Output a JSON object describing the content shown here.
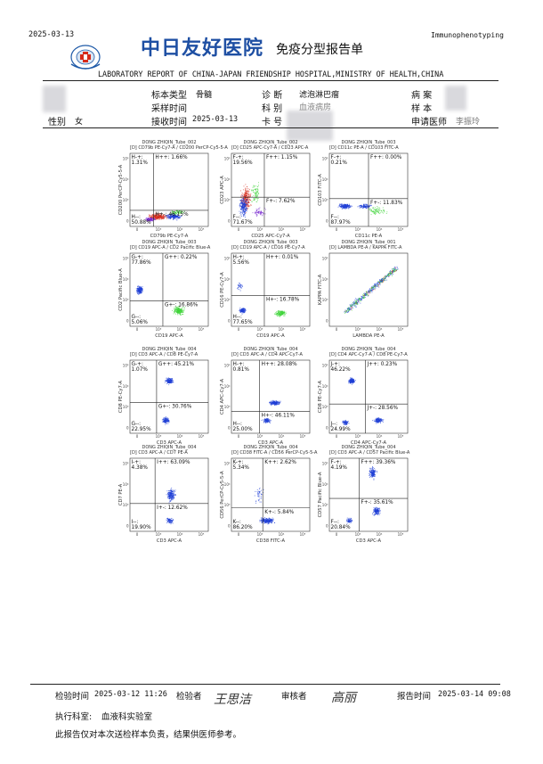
{
  "header": {
    "date": "2025-03-13",
    "right_tag": "Immunophenotyping",
    "hospital_cn": "中日友好医院",
    "report_title_cn": "免疫分型报告单",
    "report_title_en": "LABORATORY REPORT OF CHINA-JAPAN FRIENDSHIP HOSPITAL,MINISTRY OF HEALTH,CHINA"
  },
  "patient": {
    "specimen_type_label": "标本类型",
    "specimen_type": "骨髓",
    "diagnosis_label": "诊 断",
    "diagnosis": "滤泡淋巴瘤",
    "case_label": "病 案",
    "collect_time_label": "采样时间",
    "dept_label": "科 别",
    "dept": "血液病房",
    "sample_label": "样 本",
    "sex_label": "性别",
    "sex": "女",
    "receive_time_label": "接收时间",
    "receive_time": "2025-03-13",
    "card_label": "卡 号",
    "doctor_label": "申请医师",
    "doctor": "李振玲"
  },
  "plots": [
    {
      "title1": "DONG ZHIQIN_Tube_002",
      "title2": "[D] CD79b PE-Cy7-A / CD200 PerCP-Cy5-5-A",
      "xlabel": "CD79b PE-Cy7-A",
      "ylabel": "CD200 PerCP-Cy5-5-A",
      "q": {
        "ul": "H-+: 1.31%",
        "ur": "H++: 1.66%",
        "ll": "H--: 50.88%",
        "lr": "H+-: 46.15%"
      },
      "style": "cd79b"
    },
    {
      "title1": "DONG ZHIQIN_Tube_002",
      "title2": "[D] CD25 APC-Cy7-A / CD23 APC-A",
      "xlabel": "CD25 APC-Cy7-A",
      "ylabel": "CD23 APC-A",
      "q": {
        "ul": "F-+: 19.56%",
        "ur": "F++: 1.15%",
        "ll": "F--: 71.67%",
        "lr": "F+-: 7.62%"
      },
      "style": "cd25"
    },
    {
      "title1": "DONG ZHIQIN_Tube_003",
      "title2": "[D] CD11c PE-A / CD103 FITC-A",
      "xlabel": "CD11c PE-A",
      "ylabel": "CD103 FITC-A",
      "q": {
        "ul": "F-+: 0.21%",
        "ur": "F++: 0.00%",
        "ll": "F--: 87.97%",
        "lr": "F+-: 11.83%"
      },
      "style": "cd11c"
    },
    {
      "title1": "DONG ZHIQIN_Tube_003",
      "title2": "[D] CD19 APC-A / CD2 Pacific Blue-A",
      "xlabel": "CD19 APC-A",
      "ylabel": "CD2 Pacific Blue-A",
      "q": {
        "ul": "G-+: 77.86%",
        "ur": "G++: 0.22%",
        "ll": "G--: 5.06%",
        "lr": "G+-: 16.86%"
      },
      "style": "cd19a"
    },
    {
      "title1": "DONG ZHIQIN_Tube_003",
      "title2": "[D] CD19 APC-A / CD16 PE-Cy7-A",
      "xlabel": "CD19 APC-A",
      "ylabel": "CD16 PE-Cy7-A",
      "q": {
        "ul": "H-+: 5.56%",
        "ur": "H++: 0.01%",
        "ll": "H--: 77.65%",
        "lr": "H+-: 16.78%"
      },
      "style": "cd19b"
    },
    {
      "title1": "DONG ZHIQIN_Tube_001",
      "title2": "[D] LAMBDA PE-A / KAPPA FITC-A",
      "xlabel": "LAMBDA PE-A",
      "ylabel": "KAPPA FITC-A",
      "q": {
        "ul": "",
        "ur": "",
        "ll": "",
        "lr": ""
      },
      "style": "kappa"
    },
    {
      "title1": "DONG ZHIQIN_Tube_004",
      "title2": "[D] CD3 APC-A / CD8 PE-Cy7-A",
      "xlabel": "CD3 APC-A",
      "ylabel": "CD8 PE-Cy7-A",
      "q": {
        "ul": "G-+: 1.07%",
        "ur": "G++: 45.21%",
        "ll": "G--: 22.95%",
        "lr": "G+-: 30.76%"
      },
      "style": "cd3a"
    },
    {
      "title1": "DONG ZHIQIN_Tube_004",
      "title2": "[D] CD3 APC-A / CD4 APC-Cy7-A",
      "xlabel": "CD3 APC-A",
      "ylabel": "CD4 APC-Cy7-A",
      "q": {
        "ul": "H-+: 0.81%",
        "ur": "H++: 28.08%",
        "ll": "H--: 25.00%",
        "lr": "H+-: 46.11%"
      },
      "style": "cd3b"
    },
    {
      "title1": "DONG ZHIQIN_Tube_004",
      "title2": "[D] CD4 APC-Cy7-A / CD8 PE-Cy7-A",
      "xlabel": "CD4 APC-Cy7-A",
      "ylabel": "CD8 PE-Cy7-A",
      "q": {
        "ul": "J-+: 46.22%",
        "ur": "J++: 0.23%",
        "ll": "J--: 24.99%",
        "lr": "J+-: 28.56%"
      },
      "style": "cd4"
    },
    {
      "title1": "DONG ZHIQIN_Tube_004",
      "title2": "[D] CD3 APC-A / CD7 PE-A",
      "xlabel": "CD3 APC-A",
      "ylabel": "CD7 PE-A",
      "q": {
        "ul": "I-+: 4.38%",
        "ur": "I++: 63.09%",
        "ll": "I--: 19.90%",
        "lr": "I+-: 12.62%"
      },
      "style": "cd7"
    },
    {
      "title1": "DONG ZHIQIN_Tube_004",
      "title2": "[D] CD38 FITC-A / CD56 PerCP-Cy5-5-A",
      "xlabel": "CD38 FITC-A",
      "ylabel": "CD56 PerCP-Cy5-5-A",
      "q": {
        "ul": "K-+: 5.34%",
        "ur": "K++: 2.62%",
        "ll": "K--: 86.20%",
        "lr": "K+-: 5.84%"
      },
      "style": "cd38"
    },
    {
      "title1": "DONG ZHIQIN_Tube_004",
      "title2": "[D] CD3 APC-A / CD57 Pacific Blue-A",
      "xlabel": "CD3 APC-A",
      "ylabel": "CD57 Pacific Blue-A",
      "q": {
        "ul": "F-+: 4.19%",
        "ur": "F++: 39.36%",
        "ll": "F--: 20.84%",
        "lr": "F+-: 35.61%"
      },
      "style": "cd57"
    }
  ],
  "footer": {
    "test_time_label": "检验时间",
    "test_time": "2025-03-12 11:26",
    "tester_label": "检验者",
    "tester_sig": "王思洁",
    "reviewer_label": "审核者",
    "reviewer_sig": "高丽",
    "report_time_label": "报告时间",
    "report_time": "2025-03-14 09:08",
    "dept_label": "执行科室:",
    "dept": "血液科实验室",
    "disclaimer": "此报告仅对本次送检样本负责，结果供医师参考。"
  },
  "colors": {
    "blue": "#1f3fd6",
    "green": "#3fd43a",
    "red": "#d62a1a",
    "violet": "#7a2bd0"
  }
}
